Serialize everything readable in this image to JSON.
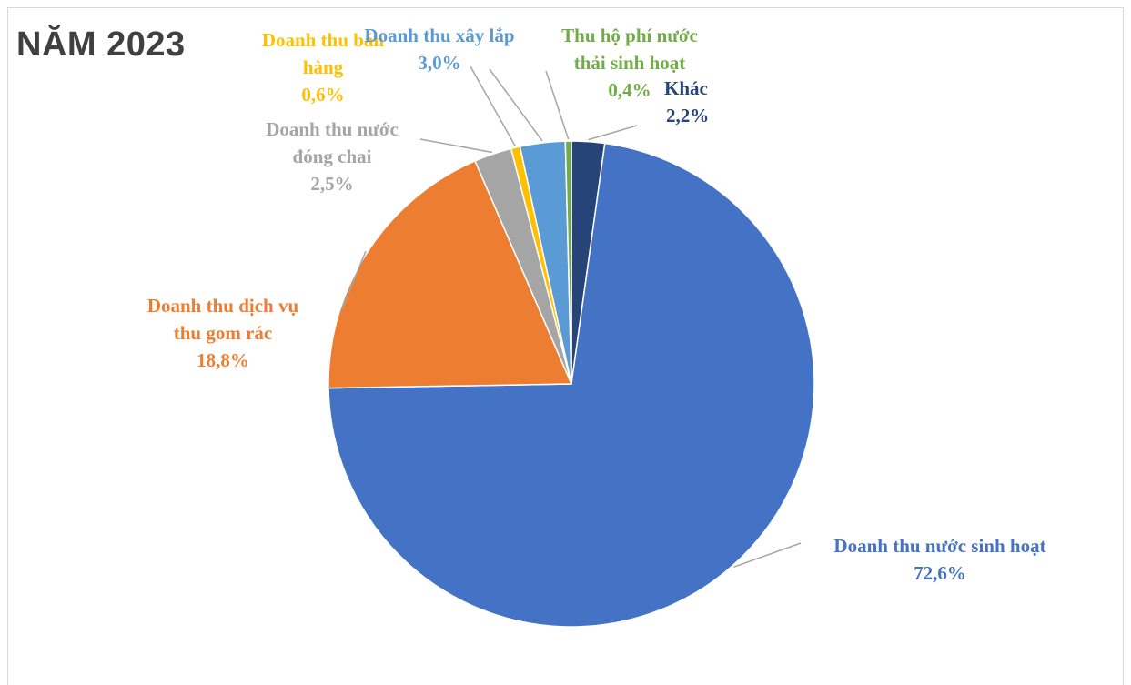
{
  "chart_data": {
    "type": "pie",
    "title": "NĂM 2023",
    "slices": [
      {
        "label_lines": [
          "Doanh thu nước sinh hoạt"
        ],
        "value": 72.6,
        "value_text": "72,6%",
        "color": "#4472C4"
      },
      {
        "label_lines": [
          "Doanh thu dịch vụ",
          "thu gom rác"
        ],
        "value": 18.8,
        "value_text": "18,8%",
        "color": "#ED7D31"
      },
      {
        "label_lines": [
          "Doanh thu nước",
          "đóng chai"
        ],
        "value": 2.5,
        "value_text": "2,5%",
        "color": "#A5A5A5"
      },
      {
        "label_lines": [
          "Doanh thu bán",
          "hàng"
        ],
        "value": 0.6,
        "value_text": "0,6%",
        "color": "#FFC000"
      },
      {
        "label_lines": [
          "Doanh thu xây lắp"
        ],
        "value": 3.0,
        "value_text": "3,0%",
        "color": "#5B9BD5"
      },
      {
        "label_lines": [
          "Thu hộ phí nước",
          "thải sinh hoạt"
        ],
        "value": 0.4,
        "value_text": "0,4%",
        "color": "#70AD47"
      },
      {
        "label_lines": [
          "Khác"
        ],
        "value": 2.2,
        "value_text": "2,2%",
        "color": "#264478"
      }
    ],
    "legend": "none",
    "data_labels": "outside with leader lines"
  }
}
